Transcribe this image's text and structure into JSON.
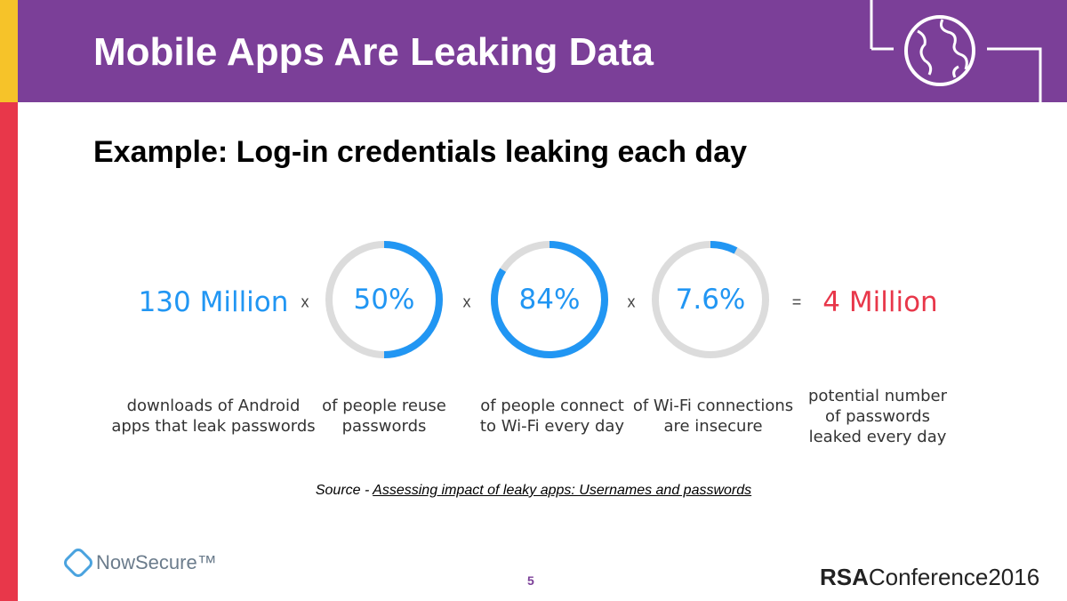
{
  "header": {
    "title": "Mobile Apps Are Leaking Data"
  },
  "subtitle": "Example: Log-in credentials leaking each day",
  "equation": {
    "start": {
      "text": "130 Million",
      "caption": [
        "downloads of Android",
        "apps that leak passwords"
      ]
    },
    "rings": [
      {
        "value": 50,
        "label": "50%",
        "caption": [
          "of people reuse",
          "passwords"
        ]
      },
      {
        "value": 84,
        "label": "84%",
        "caption": [
          "of people connect",
          "to Wi-Fi every day"
        ]
      },
      {
        "value": 7.6,
        "label": "7.6%",
        "caption": [
          "of Wi-Fi connections",
          "are insecure"
        ]
      }
    ],
    "operators": [
      "x",
      "x",
      "x",
      "="
    ],
    "result": {
      "text": "4 Million",
      "caption": [
        "potential number",
        "of passwords",
        "leaked every day"
      ]
    }
  },
  "source": {
    "prefix": "Source - ",
    "link": "Assessing impact of leaky apps: Usernames and passwords"
  },
  "footer": {
    "left_logo": "NowSecure™",
    "page": "5",
    "right_logo_bold": "RSA",
    "right_logo": "Conference2016"
  }
}
